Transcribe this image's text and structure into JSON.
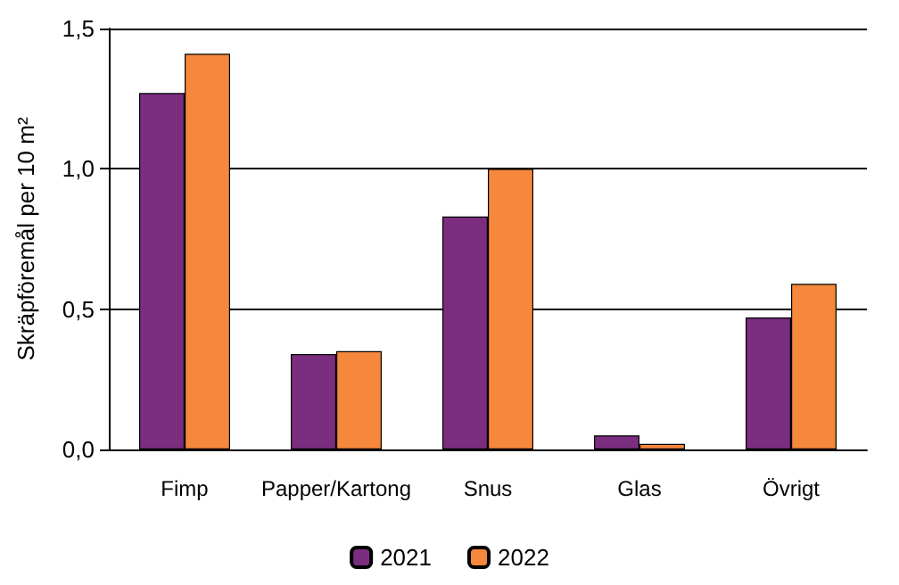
{
  "chart_data": {
    "type": "bar",
    "ylabel": "Skräpföremål per 10 m²",
    "categories": [
      "Fimp",
      "Papper/Kartong",
      "Snus",
      "Glas",
      "Övrigt"
    ],
    "series": [
      {
        "name": "2021",
        "color": "#7b2d7f",
        "values": [
          1.27,
          0.34,
          0.83,
          0.05,
          0.47
        ]
      },
      {
        "name": "2022",
        "color": "#f5883c",
        "values": [
          1.41,
          0.35,
          1.0,
          0.02,
          0.59
        ]
      }
    ],
    "ylim": [
      0,
      1.5
    ],
    "yticks": [
      {
        "value": 0,
        "label": "0,0"
      },
      {
        "value": 0.5,
        "label": "0,5"
      },
      {
        "value": 1,
        "label": "1,0"
      },
      {
        "value": 1.5,
        "label": "1,5"
      }
    ],
    "grid": "y",
    "legend": "bottom"
  }
}
